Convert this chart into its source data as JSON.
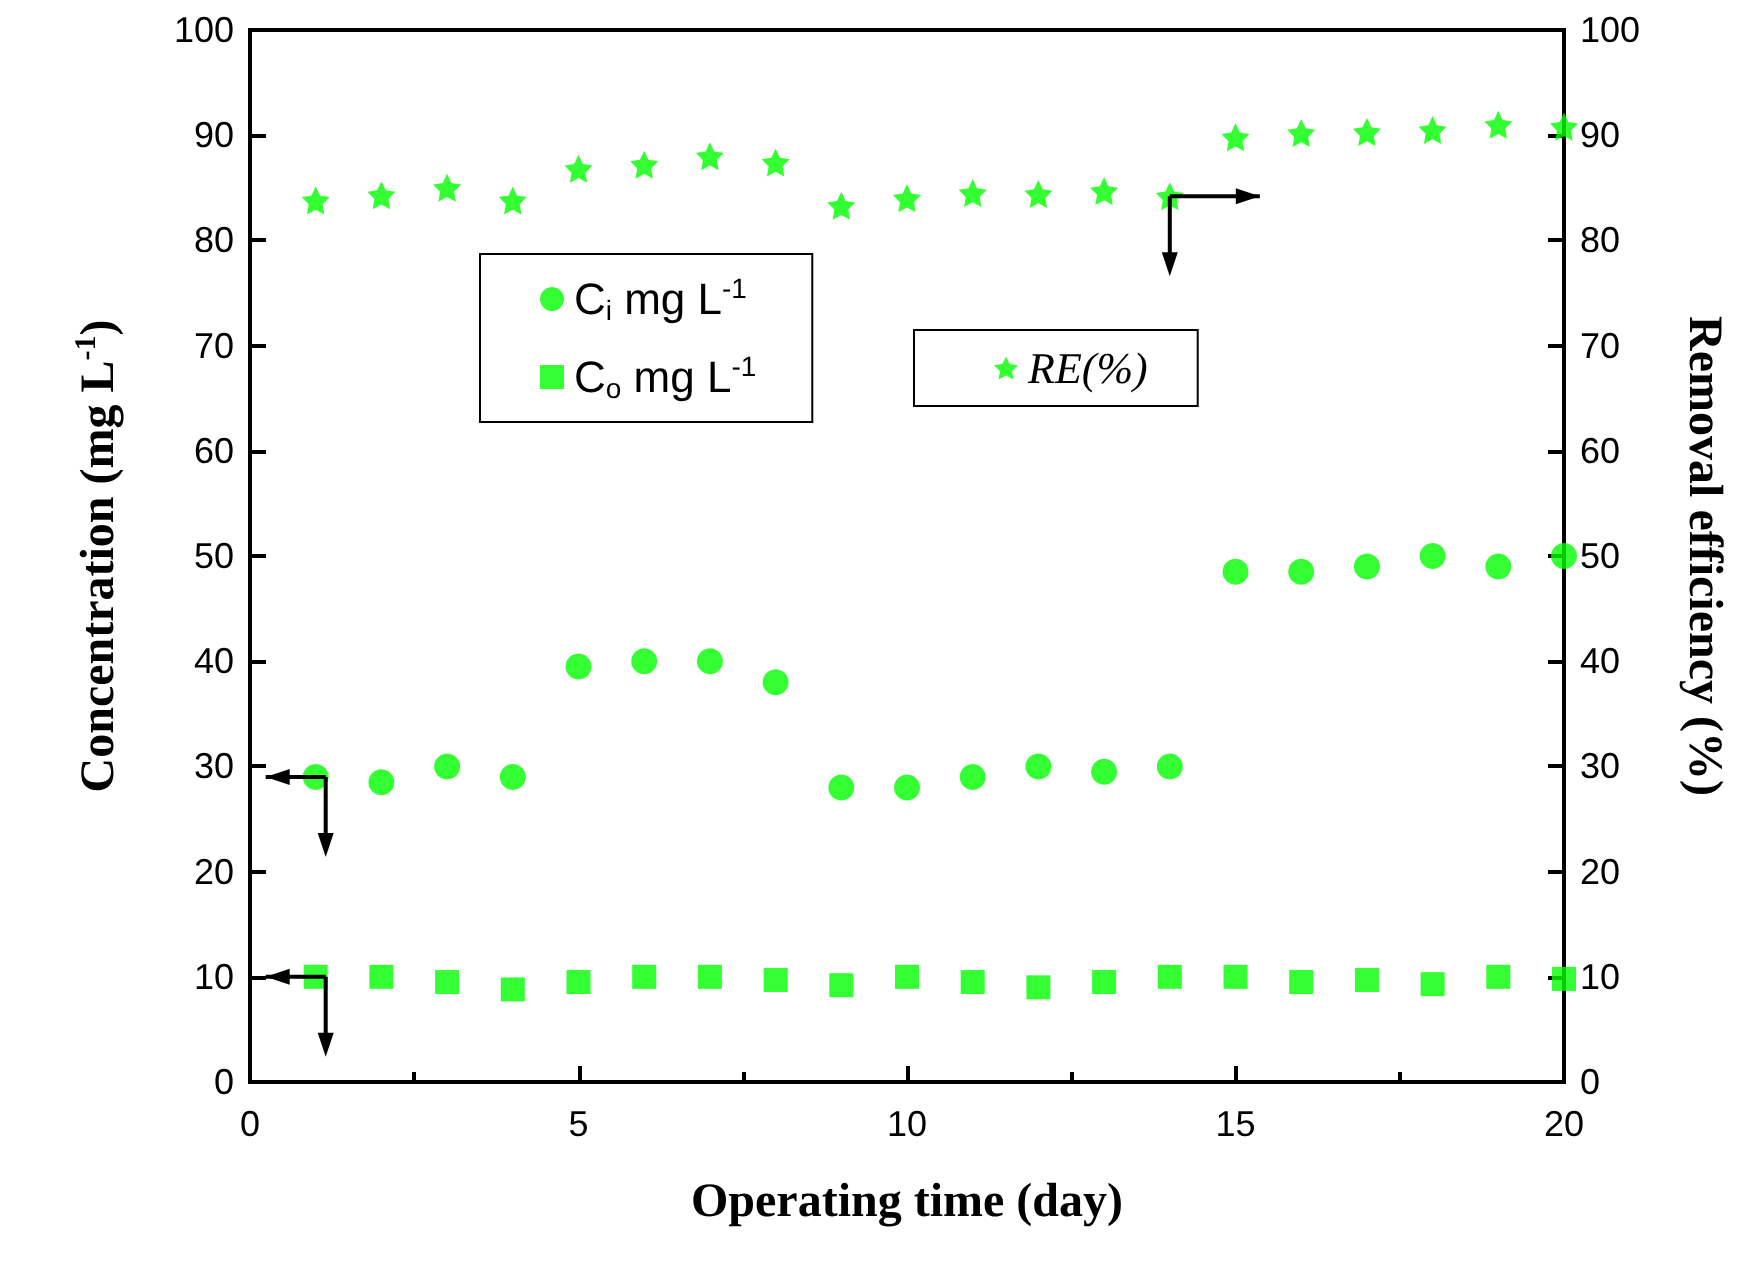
{
  "chart_data": {
    "type": "scatter",
    "xlabel": "Operating time (day)",
    "ylabel": "Concentration (mg L$^{-1}$)",
    "y2label": "Removal efficiency (%)",
    "x": [
      1,
      2,
      3,
      4,
      5,
      6,
      7,
      8,
      9,
      10,
      11,
      12,
      13,
      14,
      15,
      16,
      17,
      18,
      19,
      20
    ],
    "series": [
      {
        "name": "C$_{i}$ mg L$^{-1}$",
        "color": "#00ff00",
        "marker": "circle",
        "values": [
          29,
          28.5,
          30,
          29,
          39.5,
          40,
          40,
          38,
          28,
          28,
          29,
          30,
          29.5,
          30,
          48.5,
          48.5,
          49,
          50,
          49,
          50
        ]
      },
      {
        "name": "C$_{o}$ mg L$^{-1}$",
        "color": "#00ff00",
        "marker": "square",
        "values": [
          10,
          10,
          9.5,
          8.8,
          9.5,
          10,
          10,
          9.7,
          9.2,
          10,
          9.5,
          9,
          9.5,
          10,
          10,
          9.5,
          9.7,
          9.3,
          10,
          9.8
        ]
      },
      {
        "name": "RE(%)",
        "color": "#00ff00",
        "marker": "star",
        "axis": "y2",
        "values": [
          83.8,
          84.3,
          85,
          83.8,
          86.8,
          87.2,
          88,
          87.4,
          83.3,
          84,
          84.5,
          84.4,
          84.7,
          84.2,
          89.8,
          90.2,
          90.3,
          90.5,
          91,
          90.8
        ]
      }
    ],
    "xlim": [
      0,
      20
    ],
    "xticks": [
      0,
      5,
      10,
      15,
      20
    ],
    "ylim": [
      0,
      100
    ],
    "yticks": [
      0,
      10,
      20,
      30,
      40,
      50,
      60,
      70,
      80,
      90,
      100
    ],
    "y2lim": [
      0,
      100
    ],
    "y2ticks": [
      0,
      10,
      20,
      30,
      40,
      50,
      60,
      70,
      80,
      90,
      100
    ],
    "legend": "top left",
    "grid": false
  }
}
